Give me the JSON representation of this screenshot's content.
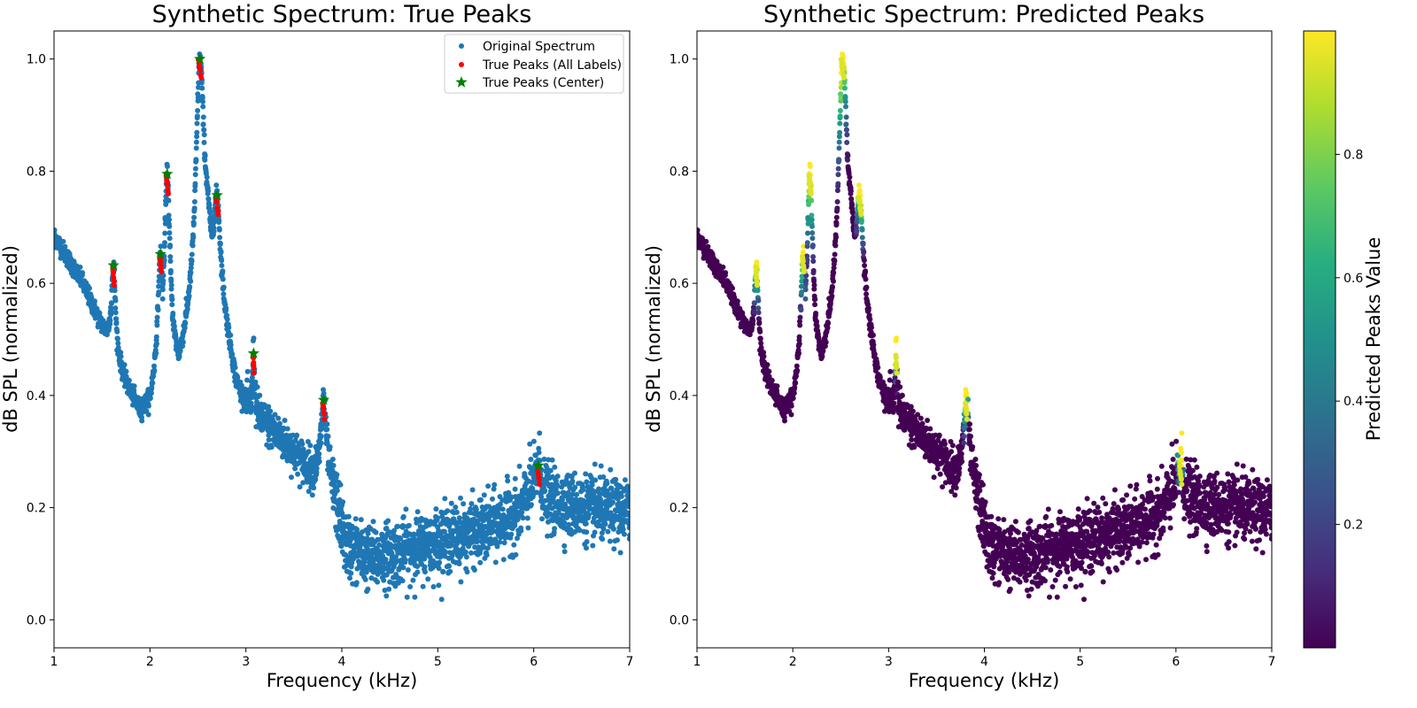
{
  "chart_data": [
    {
      "type": "scatter",
      "title": "Synthetic Spectrum: True Peaks",
      "xlabel": "Frequency (kHz)",
      "ylabel": "dB SPL (normalized)",
      "xlim": [
        1,
        7
      ],
      "ylim": [
        -0.05,
        1.05
      ],
      "xticks": [
        "1",
        "2",
        "3",
        "4",
        "5",
        "6",
        "7"
      ],
      "yticks": [
        "0.0",
        "0.2",
        "0.4",
        "0.6",
        "0.8",
        "1.0"
      ],
      "legend_position": "top-right",
      "series": [
        {
          "name": "Original Spectrum",
          "color": "#1f77b4",
          "marker": "circle",
          "description_points": "dense noisy spectrum, approx 4000 points"
        },
        {
          "name": "True Peaks (All Labels)",
          "color": "#ff0000",
          "marker": "circle"
        },
        {
          "name": "True Peaks (Center)",
          "color": "#008000",
          "marker": "star",
          "x": [
            1.62,
            2.11,
            2.18,
            2.52,
            2.7,
            3.08,
            3.81,
            6.05
          ],
          "y": [
            0.632,
            0.652,
            0.795,
            1.0,
            0.757,
            0.475,
            0.392,
            0.275
          ]
        }
      ],
      "peaks": [
        {
          "x": 1.62,
          "y": 0.632,
          "w": 0.025
        },
        {
          "x": 2.11,
          "y": 0.652,
          "w": 0.03
        },
        {
          "x": 2.18,
          "y": 0.795,
          "w": 0.035
        },
        {
          "x": 2.52,
          "y": 1.0,
          "w": 0.05
        },
        {
          "x": 2.7,
          "y": 0.757,
          "w": 0.04
        },
        {
          "x": 3.08,
          "y": 0.475,
          "w": 0.012
        },
        {
          "x": 3.81,
          "y": 0.392,
          "w": 0.03
        },
        {
          "x": 6.05,
          "y": 0.275,
          "w": 0.035
        }
      ]
    },
    {
      "type": "scatter",
      "title": "Synthetic Spectrum: Predicted Peaks",
      "xlabel": "Frequency (kHz)",
      "ylabel": "dB SPL (normalized)",
      "xlim": [
        1,
        7
      ],
      "ylim": [
        -0.05,
        1.05
      ],
      "xticks": [
        "1",
        "2",
        "3",
        "4",
        "5",
        "6",
        "7"
      ],
      "yticks": [
        "0.0",
        "0.2",
        "0.4",
        "0.6",
        "0.8",
        "1.0"
      ],
      "colorbar": {
        "label": "Predicted Peaks Value",
        "colormap": "viridis",
        "range": [
          0.0,
          1.0
        ],
        "ticks": [
          "0.2",
          "0.4",
          "0.6",
          "0.8"
        ]
      }
    }
  ]
}
